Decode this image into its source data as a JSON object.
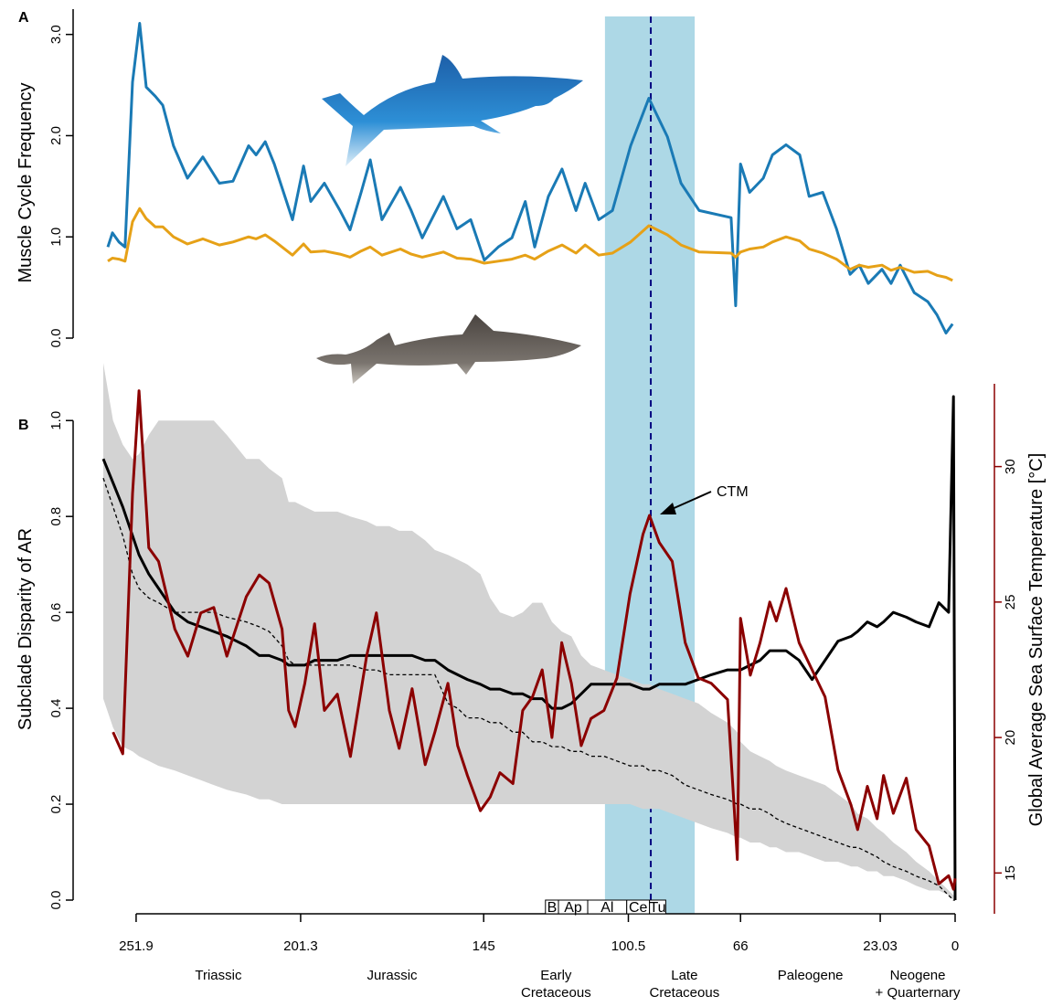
{
  "panel_labels": [
    "A",
    "B"
  ],
  "chart_data": [
    {
      "type": "line",
      "ylabel": "Muscle Cycle Frequency",
      "xlim": [
        262,
        0
      ],
      "ylim": [
        0,
        3.25
      ],
      "yticks": [
        {
          "value": 0,
          "label": "0.0"
        },
        {
          "value": 1,
          "label": "1.0"
        },
        {
          "value": 2,
          "label": "2.0"
        },
        {
          "value": 3,
          "label": "3.0"
        }
      ],
      "highlight": {
        "from": 107.7,
        "to": 80.1,
        "line": 93.6,
        "color": "#add8e6"
      },
      "x": [
        260.6,
        259.2,
        257.2,
        255.3,
        253,
        250.8,
        248.8,
        246,
        243.7,
        240.4,
        236.1,
        231.4,
        226.3,
        222.1,
        217.3,
        215,
        212.2,
        209.4,
        203.8,
        200.4,
        198.2,
        194,
        189.2,
        186.1,
        182.7,
        179.9,
        176.3,
        170.6,
        167.3,
        163.9,
        157.4,
        153.2,
        149,
        144.8,
        140.5,
        136.3,
        132.2,
        129.3,
        125.1,
        120.9,
        116.6,
        113.8,
        109.6,
        105.4,
        99.8,
        94.2,
        88.5,
        84.3,
        78.7,
        68.9,
        67.5,
        66,
        63.2,
        59,
        56.2,
        52,
        47.8,
        44.9,
        40.7,
        36.5,
        32.3,
        29.5,
        26.7,
        22.5,
        19.7,
        16.9,
        12.6,
        8.4,
        5.6,
        2.8,
        0.8
      ],
      "series": [
        {
          "color": "#1a7ab5",
          "values": [
            0.9,
            1.04,
            0.95,
            0.9,
            2.53,
            3.11,
            2.48,
            2.39,
            2.3,
            1.9,
            1.58,
            1.79,
            1.53,
            1.55,
            1.9,
            1.81,
            1.94,
            1.72,
            1.17,
            1.7,
            1.35,
            1.53,
            1.26,
            1.07,
            1.44,
            1.76,
            1.17,
            1.49,
            1.26,
            0.99,
            1.4,
            1.08,
            1.17,
            0.77,
            0.9,
            0.99,
            1.35,
            0.9,
            1.4,
            1.67,
            1.26,
            1.53,
            1.17,
            1.26,
            1.9,
            2.37,
            1.99,
            1.53,
            1.26,
            1.19,
            0.32,
            1.72,
            1.44,
            1.58,
            1.81,
            1.91,
            1.81,
            1.4,
            1.44,
            1.08,
            0.63,
            0.72,
            0.54,
            0.68,
            0.54,
            0.72,
            0.45,
            0.36,
            0.23,
            0.05,
            0.14
          ]
        },
        {
          "color": "#e6a117",
          "values": [
            0.76,
            0.79,
            0.78,
            0.76,
            1.15,
            1.28,
            1.18,
            1.1,
            1.1,
            1.0,
            0.93,
            0.98,
            0.92,
            0.95,
            1.0,
            0.98,
            1.02,
            0.96,
            0.82,
            0.93,
            0.85,
            0.86,
            0.83,
            0.8,
            0.86,
            0.9,
            0.82,
            0.88,
            0.83,
            0.8,
            0.85,
            0.79,
            0.78,
            0.74,
            0.76,
            0.78,
            0.82,
            0.78,
            0.86,
            0.92,
            0.84,
            0.92,
            0.82,
            0.84,
            0.95,
            1.11,
            1.02,
            0.92,
            0.85,
            0.84,
            0.8,
            0.85,
            0.88,
            0.9,
            0.95,
            1.0,
            0.96,
            0.88,
            0.84,
            0.78,
            0.68,
            0.72,
            0.7,
            0.72,
            0.67,
            0.7,
            0.65,
            0.66,
            0.62,
            0.6,
            0.57
          ]
        }
      ]
    },
    {
      "type": "line",
      "ylabel": "Subclade Disparity of AR",
      "y2label": "Global Average Sea Surface Temperature [°C]",
      "y2color": "#8b0000",
      "annotation": "CTM",
      "xlim": [
        262,
        0
      ],
      "ylim": [
        0,
        1.13
      ],
      "y2lim": [
        14,
        34
      ],
      "xticks": [
        251.9,
        201.3,
        145,
        100.5,
        66,
        23.03,
        0
      ],
      "yticks": [
        {
          "value": 0,
          "label": "0.0"
        },
        {
          "value": 0.2,
          "label": "0.2"
        },
        {
          "value": 0.4,
          "label": "0.4"
        },
        {
          "value": 0.6,
          "label": "0.6"
        },
        {
          "value": 0.8,
          "label": "0.8"
        },
        {
          "value": 1,
          "label": "1.0"
        }
      ],
      "y2ticks": [
        15,
        20,
        25,
        30
      ],
      "periods": [
        [
          "Triassic"
        ],
        [
          "Jurassic"
        ],
        [
          "Early",
          "Cretaceous"
        ],
        [
          "Late",
          "Cretaceous"
        ],
        [
          "Paleogene"
        ],
        [
          "Neogene",
          "+ Quarternary"
        ]
      ],
      "stages": [
        {
          "label": "B",
          "from": 126,
          "to": 122
        },
        {
          "label": "Ap",
          "from": 122,
          "to": 113
        },
        {
          "label": "Al",
          "from": 113,
          "to": 101
        },
        {
          "label": "Ce",
          "from": 101,
          "to": 94
        },
        {
          "label": "Tu",
          "from": 94,
          "to": 89
        }
      ],
      "x": [
        262,
        259,
        256,
        253,
        251,
        248,
        245,
        240,
        236,
        232,
        228,
        224,
        218,
        214,
        211,
        207,
        205,
        203,
        200,
        197,
        194,
        190,
        186,
        181,
        178,
        174,
        171,
        167,
        163,
        160,
        156,
        153,
        150,
        146,
        143,
        140,
        136,
        133,
        130,
        127,
        124,
        121,
        118,
        115,
        112,
        108,
        104,
        100,
        96,
        94,
        91,
        87,
        83,
        79,
        75,
        70,
        67,
        66,
        63,
        60,
        57,
        55,
        52,
        48,
        44,
        40,
        36,
        32,
        30,
        27,
        24,
        22,
        19,
        15,
        12,
        8,
        5,
        2,
        0.5,
        0
      ],
      "band": {
        "color": "#d3d3d3",
        "lower": [
          0.42,
          0.36,
          0.32,
          0.31,
          0.3,
          0.29,
          0.28,
          0.27,
          0.26,
          0.25,
          0.24,
          0.23,
          0.22,
          0.21,
          0.21,
          0.2,
          0.2,
          0.2,
          0.2,
          0.2,
          0.2,
          0.2,
          0.2,
          0.2,
          0.2,
          0.2,
          0.2,
          0.2,
          0.2,
          0.2,
          0.2,
          0.2,
          0.2,
          0.2,
          0.2,
          0.2,
          0.2,
          0.2,
          0.2,
          0.2,
          0.2,
          0.2,
          0.2,
          0.2,
          0.2,
          0.2,
          0.2,
          0.2,
          0.19,
          0.19,
          0.19,
          0.18,
          0.17,
          0.16,
          0.15,
          0.14,
          0.13,
          0.13,
          0.12,
          0.12,
          0.11,
          0.11,
          0.1,
          0.1,
          0.09,
          0.08,
          0.08,
          0.07,
          0.07,
          0.06,
          0.06,
          0.05,
          0.05,
          0.04,
          0.03,
          0.02,
          0.02,
          0.01,
          0.0,
          0.0
        ],
        "upper": [
          1.12,
          1.0,
          0.95,
          0.92,
          0.93,
          0.97,
          1.0,
          1.0,
          1.0,
          1.0,
          1.0,
          0.97,
          0.92,
          0.92,
          0.9,
          0.88,
          0.83,
          0.83,
          0.82,
          0.81,
          0.81,
          0.81,
          0.8,
          0.79,
          0.78,
          0.78,
          0.77,
          0.77,
          0.75,
          0.73,
          0.72,
          0.71,
          0.7,
          0.68,
          0.63,
          0.6,
          0.59,
          0.6,
          0.62,
          0.62,
          0.58,
          0.56,
          0.55,
          0.51,
          0.49,
          0.48,
          0.47,
          0.46,
          0.45,
          0.45,
          0.44,
          0.43,
          0.42,
          0.41,
          0.39,
          0.37,
          0.35,
          0.33,
          0.31,
          0.3,
          0.29,
          0.28,
          0.27,
          0.26,
          0.25,
          0.24,
          0.22,
          0.2,
          0.18,
          0.17,
          0.15,
          0.14,
          0.12,
          0.1,
          0.08,
          0.06,
          0.04,
          0.02,
          0.01,
          0.0
        ]
      },
      "series": [
        {
          "color": "#000000",
          "dash": true,
          "width": 1.3,
          "values": [
            0.88,
            0.82,
            0.76,
            0.68,
            0.65,
            0.63,
            0.62,
            0.6,
            0.6,
            0.6,
            0.6,
            0.59,
            0.58,
            0.57,
            0.56,
            0.53,
            0.5,
            0.49,
            0.49,
            0.49,
            0.49,
            0.49,
            0.49,
            0.48,
            0.48,
            0.47,
            0.47,
            0.47,
            0.47,
            0.47,
            0.41,
            0.4,
            0.38,
            0.38,
            0.37,
            0.37,
            0.35,
            0.35,
            0.33,
            0.33,
            0.32,
            0.32,
            0.31,
            0.31,
            0.3,
            0.3,
            0.29,
            0.28,
            0.28,
            0.27,
            0.27,
            0.26,
            0.24,
            0.23,
            0.22,
            0.21,
            0.2,
            0.2,
            0.19,
            0.19,
            0.18,
            0.17,
            0.16,
            0.15,
            0.14,
            0.13,
            0.12,
            0.11,
            0.11,
            0.1,
            0.09,
            0.08,
            0.07,
            0.06,
            0.05,
            0.04,
            0.03,
            0.01,
            0.0,
            0.0
          ]
        },
        {
          "color": "#000000",
          "width": 3,
          "values": [
            0.92,
            0.87,
            0.82,
            0.76,
            0.72,
            0.68,
            0.65,
            0.6,
            0.58,
            0.57,
            0.56,
            0.55,
            0.53,
            0.51,
            0.51,
            0.5,
            0.49,
            0.49,
            0.49,
            0.5,
            0.5,
            0.5,
            0.51,
            0.51,
            0.51,
            0.51,
            0.51,
            0.51,
            0.5,
            0.5,
            0.48,
            0.47,
            0.46,
            0.45,
            0.44,
            0.44,
            0.43,
            0.43,
            0.42,
            0.42,
            0.4,
            0.4,
            0.41,
            0.43,
            0.45,
            0.45,
            0.45,
            0.45,
            0.44,
            0.44,
            0.45,
            0.45,
            0.45,
            0.46,
            0.47,
            0.48,
            0.48,
            0.48,
            0.49,
            0.5,
            0.52,
            0.52,
            0.52,
            0.5,
            0.46,
            0.5,
            0.54,
            0.55,
            0.56,
            0.58,
            0.57,
            0.58,
            0.6,
            0.59,
            0.58,
            0.57,
            0.62,
            0.6,
            1.05,
            0.0
          ]
        },
        {
          "color": "#8b0000",
          "width": 3,
          "axis": "y2",
          "values": [
            null,
            20.2,
            19.4,
            29.0,
            32.8,
            27.0,
            26.5,
            24.0,
            23.0,
            24.6,
            24.8,
            23.0,
            25.2,
            26.0,
            25.7,
            24.0,
            21.0,
            20.4,
            22.0,
            24.2,
            21.0,
            21.6,
            19.3,
            23.0,
            24.6,
            21.0,
            19.6,
            21.8,
            19.0,
            20.2,
            22.0,
            19.7,
            18.6,
            17.3,
            17.8,
            18.7,
            18.3,
            21.0,
            21.5,
            22.5,
            20.0,
            23.5,
            22.0,
            19.7,
            20.7,
            21.0,
            22.2,
            25.3,
            27.5,
            28.2,
            27.2,
            26.5,
            23.5,
            22.2,
            22.0,
            21.4,
            15.5,
            24.4,
            22.3,
            23.5,
            25.0,
            24.3,
            25.5,
            23.5,
            22.5,
            21.5,
            18.8,
            17.5,
            16.6,
            18.2,
            17.0,
            18.6,
            17.2,
            18.5,
            16.6,
            16.0,
            14.6,
            14.9,
            14.4,
            14.8
          ]
        }
      ]
    }
  ]
}
